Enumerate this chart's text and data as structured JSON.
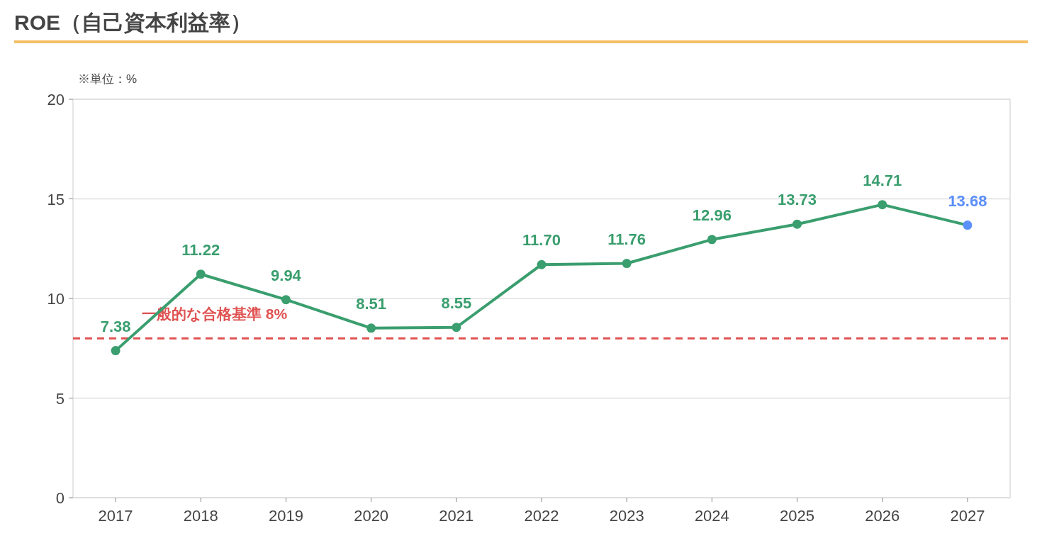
{
  "chart_data": {
    "type": "line",
    "title": "ROE（自己資本利益率）",
    "annotations": [
      "※単位：%"
    ],
    "categories": [
      "2017",
      "2018",
      "2019",
      "2020",
      "2021",
      "2022",
      "2023",
      "2024",
      "2025",
      "2026",
      "2027"
    ],
    "series": [
      {
        "color": "#3a9e6e",
        "colors": [
          "#3a9e6e",
          "#3a9e6e",
          "#3a9e6e",
          "#3a9e6e",
          "#3a9e6e",
          "#3a9e6e",
          "#3a9e6e",
          "#3a9e6e",
          "#3a9e6e",
          "#3a9e6e",
          "#5b8ff9"
        ],
        "values": [
          7.38,
          11.22,
          9.94,
          8.51,
          8.55,
          11.7,
          11.76,
          12.96,
          13.73,
          14.71,
          13.68
        ],
        "value_labels": [
          "7.38",
          "11.22",
          "9.94",
          "8.51",
          "8.55",
          "11.70",
          "11.76",
          "12.96",
          "13.73",
          "14.71",
          "13.68"
        ]
      }
    ],
    "ylim": [
      0,
      20
    ],
    "yticks": [
      0,
      5,
      10,
      15,
      20
    ],
    "grid": "y",
    "marker": "circle",
    "line_style": "solid",
    "ref_lines": [
      {
        "axis": "y",
        "value": 8,
        "label": "一般的な合格基準 8%",
        "color": "#e05252",
        "line_style": "dashed"
      }
    ]
  }
}
